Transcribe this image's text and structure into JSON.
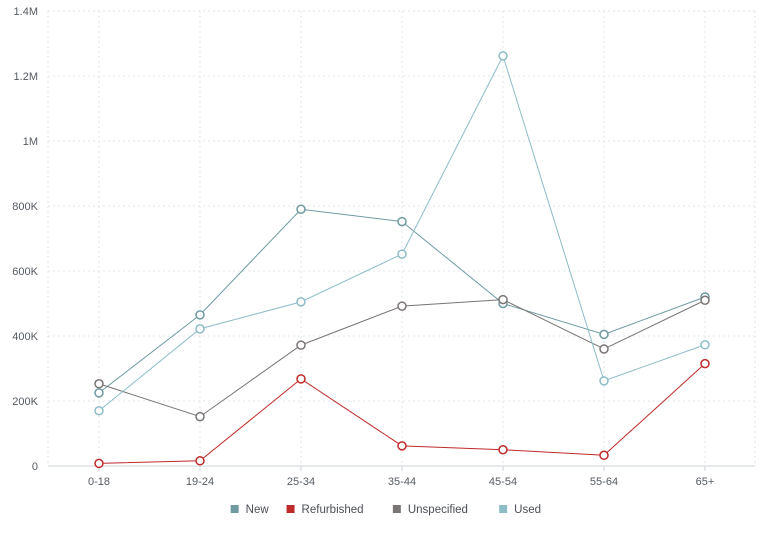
{
  "chart_data": {
    "type": "line",
    "title": "",
    "xlabel": "",
    "ylabel": "",
    "categories": [
      "0-18",
      "19-24",
      "25-34",
      "35-44",
      "45-54",
      "55-64",
      "65+"
    ],
    "ylim": [
      0,
      1400000
    ],
    "y_ticks": [
      {
        "value": 0,
        "label": "0"
      },
      {
        "value": 200000,
        "label": "200K"
      },
      {
        "value": 400000,
        "label": "400K"
      },
      {
        "value": 600000,
        "label": "600K"
      },
      {
        "value": 800000,
        "label": "800K"
      },
      {
        "value": 1000000,
        "label": "1M"
      },
      {
        "value": 1200000,
        "label": "1.2M"
      },
      {
        "value": 1400000,
        "label": "1.4M"
      }
    ],
    "grid": true,
    "legend_position": "bottom",
    "series": [
      {
        "name": "New",
        "color": "#6f9aa2",
        "values": [
          225000,
          465000,
          790000,
          752000,
          500000,
          405000,
          520000
        ]
      },
      {
        "name": "Refurbished",
        "color": "#c02a2a",
        "values": [
          8000,
          16000,
          268000,
          62000,
          50000,
          33000,
          315000
        ]
      },
      {
        "name": "Unspecified",
        "color": "#7a7474",
        "values": [
          253000,
          152000,
          372000,
          492000,
          512000,
          360000,
          510000
        ]
      },
      {
        "name": "Used",
        "color": "#8dbcc8",
        "values": [
          170000,
          422000,
          505000,
          652000,
          1262000,
          262000,
          373000
        ]
      }
    ]
  }
}
